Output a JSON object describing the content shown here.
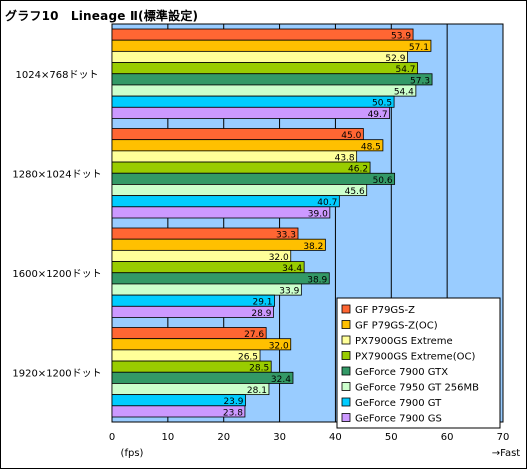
{
  "chart_data": {
    "type": "bar",
    "orientation": "horizontal",
    "title": "グラフ10　Lineage Ⅱ(標準設定)",
    "categories": [
      "1024×768ドット",
      "1280×1024ドット",
      "1600×1200ドット",
      "1920×1200ドット"
    ],
    "series": [
      {
        "name": "GF P79GS-Z",
        "color": "#ff6633",
        "values": [
          53.9,
          45.0,
          33.3,
          27.6
        ]
      },
      {
        "name": "GF P79GS-Z(OC)",
        "color": "#ffc000",
        "values": [
          57.1,
          48.5,
          38.2,
          32.0
        ]
      },
      {
        "name": "PX7900GS Extreme",
        "color": "#ffff99",
        "values": [
          52.9,
          43.8,
          32.0,
          26.5
        ]
      },
      {
        "name": "PX7900GS Extreme(OC)",
        "color": "#99cc00",
        "values": [
          54.7,
          46.2,
          34.4,
          28.5
        ]
      },
      {
        "name": "GeForce 7900 GTX",
        "color": "#339966",
        "values": [
          57.3,
          50.6,
          38.9,
          32.4
        ]
      },
      {
        "name": "GeForce 7950 GT 256MB",
        "color": "#ccffcc",
        "values": [
          54.4,
          45.6,
          33.9,
          28.1
        ]
      },
      {
        "name": "GeForce 7900 GT",
        "color": "#00ccff",
        "values": [
          50.5,
          40.7,
          29.1,
          23.9
        ]
      },
      {
        "name": "GeForce 7900 GS",
        "color": "#cc99ff",
        "values": [
          49.7,
          39.0,
          28.9,
          23.8
        ]
      }
    ],
    "xlim": [
      0,
      70
    ],
    "xticks": [
      0,
      10,
      20,
      30,
      40,
      50,
      60,
      70
    ],
    "xlabel": "(fps)",
    "xlabel_right": "→Fast",
    "grid": true,
    "plot_background": "#99ccff",
    "legend_position": "bottom-right"
  }
}
